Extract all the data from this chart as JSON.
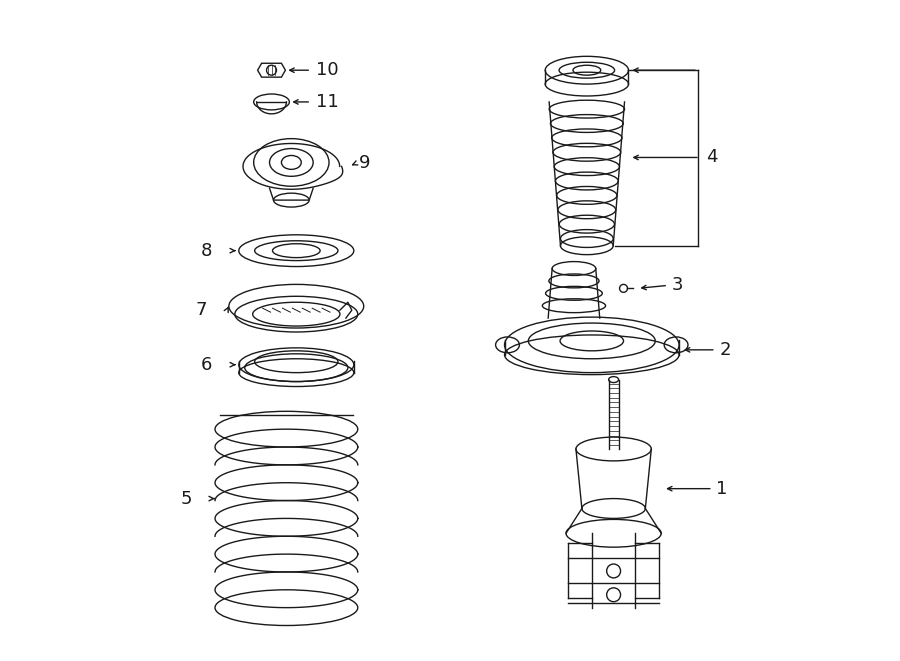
{
  "bg_color": "#ffffff",
  "line_color": "#1a1a1a",
  "fig_width": 9.0,
  "fig_height": 6.61,
  "dpi": 100,
  "font_size": 13
}
